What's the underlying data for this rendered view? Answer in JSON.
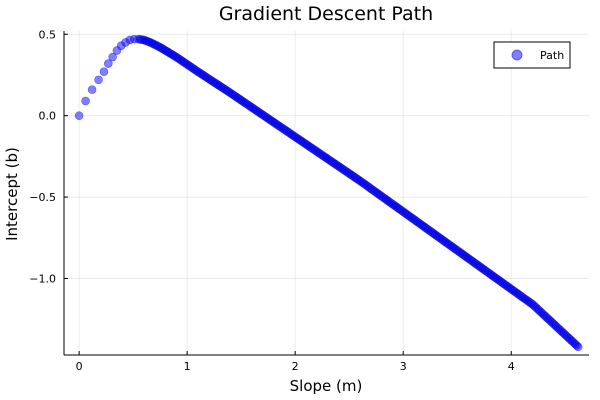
{
  "chart_data": {
    "type": "scatter",
    "title": "Gradient Descent Path",
    "xlabel": "Slope (m)",
    "ylabel": "Intercept (b)",
    "xlim": [
      -0.14,
      4.72
    ],
    "ylim": [
      -1.47,
      0.52
    ],
    "grid": true,
    "legend_position": "top-right",
    "x_ticks": [
      0,
      1,
      2,
      3,
      4
    ],
    "x_tick_labels": [
      "0",
      "1",
      "2",
      "3",
      "4"
    ],
    "y_ticks": [
      0.5,
      0.0,
      -0.5,
      -1.0
    ],
    "y_tick_labels": [
      "0.5",
      "0.0",
      "−0.5",
      "−1.0"
    ],
    "series": [
      {
        "name": "Path",
        "color": "#0000ff",
        "marker": "circle",
        "opacity": 0.5,
        "x": [
          0,
          0.06,
          0.12,
          0.18,
          0.23,
          0.27,
          0.31,
          0.35,
          0.39,
          0.43,
          0.47,
          0.51,
          0.55,
          0.6,
          0.66,
          0.75,
          0.9,
          1.1,
          1.4,
          1.8,
          2.2,
          2.6,
          3.0,
          3.4,
          3.8,
          4.2,
          4.62
        ],
        "y": [
          0.0,
          0.09,
          0.16,
          0.22,
          0.27,
          0.32,
          0.36,
          0.4,
          0.43,
          0.45,
          0.465,
          0.47,
          0.47,
          0.465,
          0.45,
          0.42,
          0.36,
          0.27,
          0.14,
          -0.04,
          -0.22,
          -0.4,
          -0.59,
          -0.78,
          -0.97,
          -1.16,
          -1.42
        ]
      }
    ]
  }
}
